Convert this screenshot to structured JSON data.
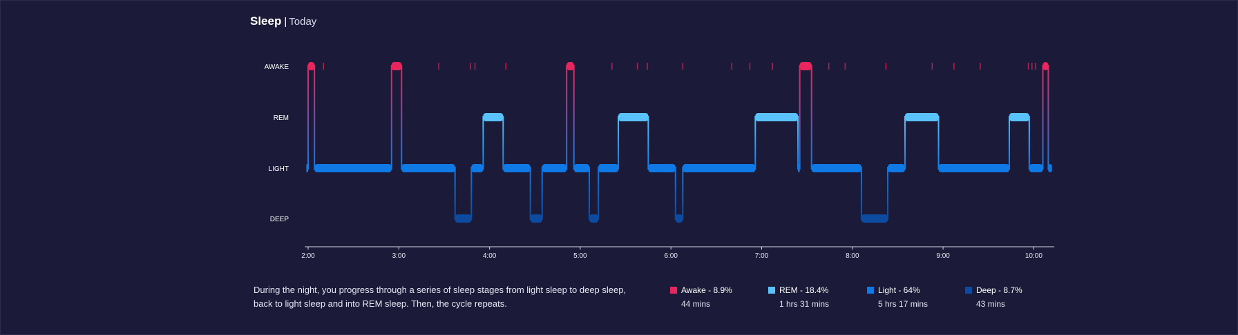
{
  "header": {
    "title": "Sleep",
    "separator": "|",
    "subtitle": "Today"
  },
  "description": "During the night, you progress through a series of sleep stages from light sleep to deep sleep, back to light sleep and into REM sleep. Then, the cycle repeats.",
  "colors": {
    "background": "#1b1a38",
    "awake": "#e8265e",
    "rem": "#5ac2fb",
    "light": "#0f7ae5",
    "deep": "#0d4ba1",
    "axis": "#d8d8e8"
  },
  "legend": [
    {
      "key": "awake",
      "label": "Awake - 8.9%",
      "duration": "44 mins",
      "color": "#e8265e"
    },
    {
      "key": "rem",
      "label": "REM - 18.4%",
      "duration": "1 hrs 31 mins",
      "color": "#5ac2fb"
    },
    {
      "key": "light",
      "label": "Light - 64%",
      "duration": "5 hrs 17 mins",
      "color": "#0f7ae5"
    },
    {
      "key": "deep",
      "label": "Deep - 8.7%",
      "duration": "43 mins",
      "color": "#0d4ba1"
    }
  ],
  "chart_data": {
    "type": "step",
    "y_categories": [
      "AWAKE",
      "REM",
      "LIGHT",
      "DEEP"
    ],
    "x_ticks": [
      "2:00",
      "3:00",
      "4:00",
      "5:00",
      "6:00",
      "7:00",
      "8:00",
      "9:00",
      "10:00"
    ],
    "x_tick_hours": [
      2,
      3,
      4,
      5,
      6,
      7,
      8,
      9,
      10
    ],
    "x_range_hours": [
      1.98,
      10.18
    ],
    "segments": [
      {
        "stage": "LIGHT",
        "start": 1.98,
        "end": 2.0
      },
      {
        "stage": "AWAKE",
        "start": 2.0,
        "end": 2.07
      },
      {
        "stage": "LIGHT",
        "start": 2.07,
        "end": 2.92
      },
      {
        "stage": "AWAKE",
        "start": 2.92,
        "end": 3.03
      },
      {
        "stage": "LIGHT",
        "start": 3.03,
        "end": 3.62
      },
      {
        "stage": "DEEP",
        "start": 3.62,
        "end": 3.8
      },
      {
        "stage": "LIGHT",
        "start": 3.8,
        "end": 3.93
      },
      {
        "stage": "REM",
        "start": 3.93,
        "end": 4.15
      },
      {
        "stage": "LIGHT",
        "start": 4.15,
        "end": 4.45
      },
      {
        "stage": "DEEP",
        "start": 4.45,
        "end": 4.58
      },
      {
        "stage": "LIGHT",
        "start": 4.58,
        "end": 4.85
      },
      {
        "stage": "AWAKE",
        "start": 4.85,
        "end": 4.93
      },
      {
        "stage": "LIGHT",
        "start": 4.93,
        "end": 5.1
      },
      {
        "stage": "DEEP",
        "start": 5.1,
        "end": 5.2
      },
      {
        "stage": "LIGHT",
        "start": 5.2,
        "end": 5.42
      },
      {
        "stage": "REM",
        "start": 5.42,
        "end": 5.75
      },
      {
        "stage": "LIGHT",
        "start": 5.75,
        "end": 6.05
      },
      {
        "stage": "DEEP",
        "start": 6.05,
        "end": 6.13
      },
      {
        "stage": "LIGHT",
        "start": 6.13,
        "end": 6.93
      },
      {
        "stage": "REM",
        "start": 6.93,
        "end": 7.4
      },
      {
        "stage": "LIGHT",
        "start": 7.4,
        "end": 7.42
      },
      {
        "stage": "AWAKE",
        "start": 7.42,
        "end": 7.55
      },
      {
        "stage": "LIGHT",
        "start": 7.55,
        "end": 8.1
      },
      {
        "stage": "DEEP",
        "start": 8.1,
        "end": 8.39
      },
      {
        "stage": "LIGHT",
        "start": 8.39,
        "end": 8.58
      },
      {
        "stage": "REM",
        "start": 8.58,
        "end": 8.95
      },
      {
        "stage": "LIGHT",
        "start": 8.95,
        "end": 9.73
      },
      {
        "stage": "REM",
        "start": 9.73,
        "end": 9.95
      },
      {
        "stage": "LIGHT",
        "start": 9.95,
        "end": 10.1
      },
      {
        "stage": "AWAKE",
        "start": 10.1,
        "end": 10.16
      },
      {
        "stage": "LIGHT",
        "start": 10.16,
        "end": 10.2
      }
    ],
    "brief_awake_hours": [
      2.17,
      3.44,
      3.79,
      3.84,
      4.18,
      5.35,
      5.63,
      5.74,
      6.13,
      6.67,
      6.87,
      7.12,
      7.74,
      7.92,
      8.37,
      8.88,
      9.12,
      9.41,
      9.94,
      9.98,
      10.02
    ]
  }
}
